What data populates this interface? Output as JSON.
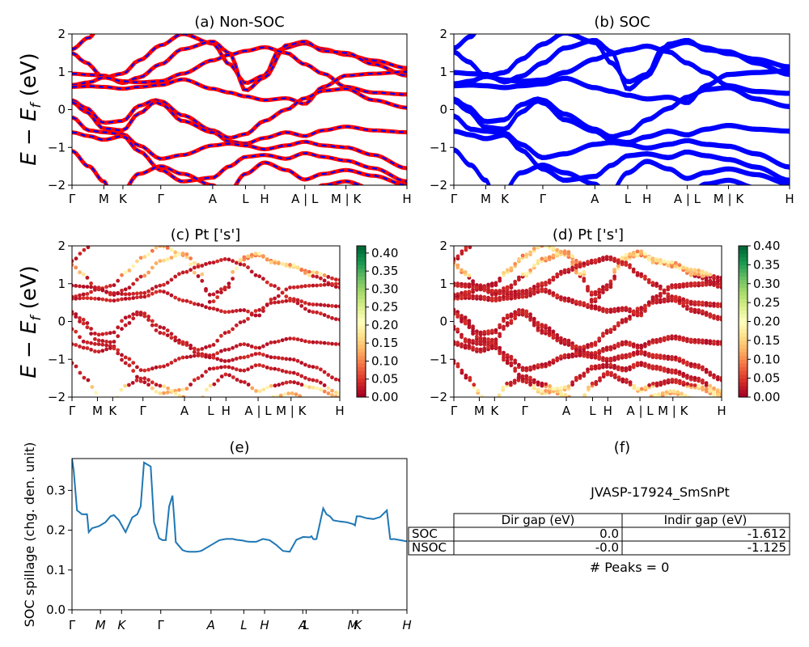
{
  "chart_data": [
    {
      "type": "line",
      "panel": "a",
      "title": "(a) Non-SOC",
      "ylabel": "E − E_f (eV)",
      "ylim": [
        -2,
        2
      ],
      "yticks": [
        "−2",
        "−1",
        "0",
        "1",
        "2"
      ],
      "xticks": [
        "Γ",
        "M",
        "K",
        "Γ",
        "A",
        "L",
        "H",
        "A | L",
        "M | K",
        "H"
      ],
      "series_colors": [
        "#ff0000",
        "#0000ff"
      ],
      "series_style": "red solid bands overlaid with blue dashed bands"
    },
    {
      "type": "line",
      "panel": "b",
      "title": "(b) SOC",
      "ylim": [
        -2,
        2
      ],
      "yticks": [
        "−2",
        "−1",
        "0",
        "1",
        "2"
      ],
      "xticks": [
        "Γ",
        "M",
        "K",
        "Γ",
        "A",
        "L",
        "H",
        "A | L",
        "M | K",
        "H"
      ],
      "series_colors": [
        "#0000ff"
      ]
    },
    {
      "type": "scatter",
      "panel": "c",
      "title": "(c)  Pt ['s']",
      "ylabel": "E − E_f (eV)",
      "ylim": [
        -2,
        2
      ],
      "yticks": [
        "−2",
        "−1",
        "0",
        "1",
        "2"
      ],
      "xticks": [
        "Γ",
        "M",
        "K",
        "Γ",
        "A",
        "L",
        "H",
        "A | L",
        "M | K",
        "H"
      ],
      "colormap": "RdYlGn",
      "colorbar_ticks": [
        "0.00",
        "0.05",
        "0.10",
        "0.15",
        "0.20",
        "0.25",
        "0.30",
        "0.35",
        "0.40"
      ],
      "colorbar_range": [
        0,
        0.42
      ]
    },
    {
      "type": "scatter",
      "panel": "d",
      "title": "(d) Pt ['s']",
      "ylim": [
        -2,
        2
      ],
      "yticks": [
        "−2",
        "−1",
        "0",
        "1",
        "2"
      ],
      "xticks": [
        "Γ",
        "M",
        "K",
        "Γ",
        "A",
        "L",
        "H",
        "A | L",
        "M | K",
        "H"
      ],
      "colormap": "RdYlGn",
      "colorbar_ticks": [
        "0.00",
        "0.05",
        "0.10",
        "0.15",
        "0.20",
        "0.25",
        "0.30",
        "0.35",
        "0.40"
      ],
      "colorbar_range": [
        0,
        0.4
      ]
    },
    {
      "type": "line",
      "panel": "e",
      "title": "(e)",
      "ylabel": "SOC spillage (chg. den. unit)",
      "ylim": [
        0,
        0.38
      ],
      "yticks": [
        "0.0",
        "0.1",
        "0.2",
        "0.3"
      ],
      "xticks": [
        "Γ",
        "M",
        "K",
        "Γ",
        "A",
        "L",
        "H",
        "A",
        "L",
        "M",
        "K",
        "H"
      ],
      "color": "#1f77b4",
      "x": [
        0,
        0.5,
        1.5,
        3,
        4.5,
        5,
        6,
        8,
        10,
        11.5,
        12.5,
        14,
        16,
        18,
        19.5,
        20.5,
        21.5,
        22.5,
        23.5,
        24.5,
        26,
        27,
        28,
        29,
        30,
        30.5,
        31,
        32,
        33,
        34,
        35,
        36,
        37,
        38,
        38.5,
        39,
        40,
        42,
        44,
        46,
        48,
        49,
        50,
        51,
        52,
        53,
        55,
        57,
        59,
        61,
        63,
        65,
        67,
        69,
        71,
        71.5,
        72,
        72.5,
        73,
        75,
        76,
        77,
        77.5,
        78,
        80,
        82,
        84,
        84.5,
        85,
        86,
        88,
        90,
        92,
        94,
        95,
        95.5,
        96,
        98,
        100
      ],
      "values": [
        0.38,
        0.35,
        0.25,
        0.24,
        0.24,
        0.195,
        0.205,
        0.21,
        0.22,
        0.235,
        0.238,
        0.225,
        0.195,
        0.232,
        0.24,
        0.26,
        0.37,
        0.365,
        0.36,
        0.22,
        0.18,
        0.175,
        0.175,
        0.26,
        0.287,
        0.23,
        0.17,
        0.16,
        0.15,
        0.147,
        0.146,
        0.146,
        0.146,
        0.147,
        0.148,
        0.15,
        0.155,
        0.165,
        0.175,
        0.178,
        0.178,
        0.176,
        0.175,
        0.174,
        0.172,
        0.171,
        0.171,
        0.178,
        0.175,
        0.163,
        0.148,
        0.146,
        0.176,
        0.183,
        0.182,
        0.185,
        0.178,
        0.177,
        0.178,
        0.255,
        0.24,
        0.235,
        0.23,
        0.225,
        0.222,
        0.22,
        0.215,
        0.212,
        0.235,
        0.235,
        0.23,
        0.228,
        0.233,
        0.25,
        0.178,
        0.177,
        0.178,
        0.175,
        0.172
      ]
    }
  ],
  "table": {
    "title": "(f)",
    "material": "JVASP-17924_SmSnPt",
    "columns": [
      "Dir gap (eV)",
      "Indir gap (eV)"
    ],
    "rows": [
      {
        "label": "SOC",
        "dir": "0.0",
        "indir": "-1.612"
      },
      {
        "label": "NSOC",
        "dir": "-0.0",
        "indir": "-1.125"
      }
    ],
    "peaks": "# Peaks = 0"
  }
}
